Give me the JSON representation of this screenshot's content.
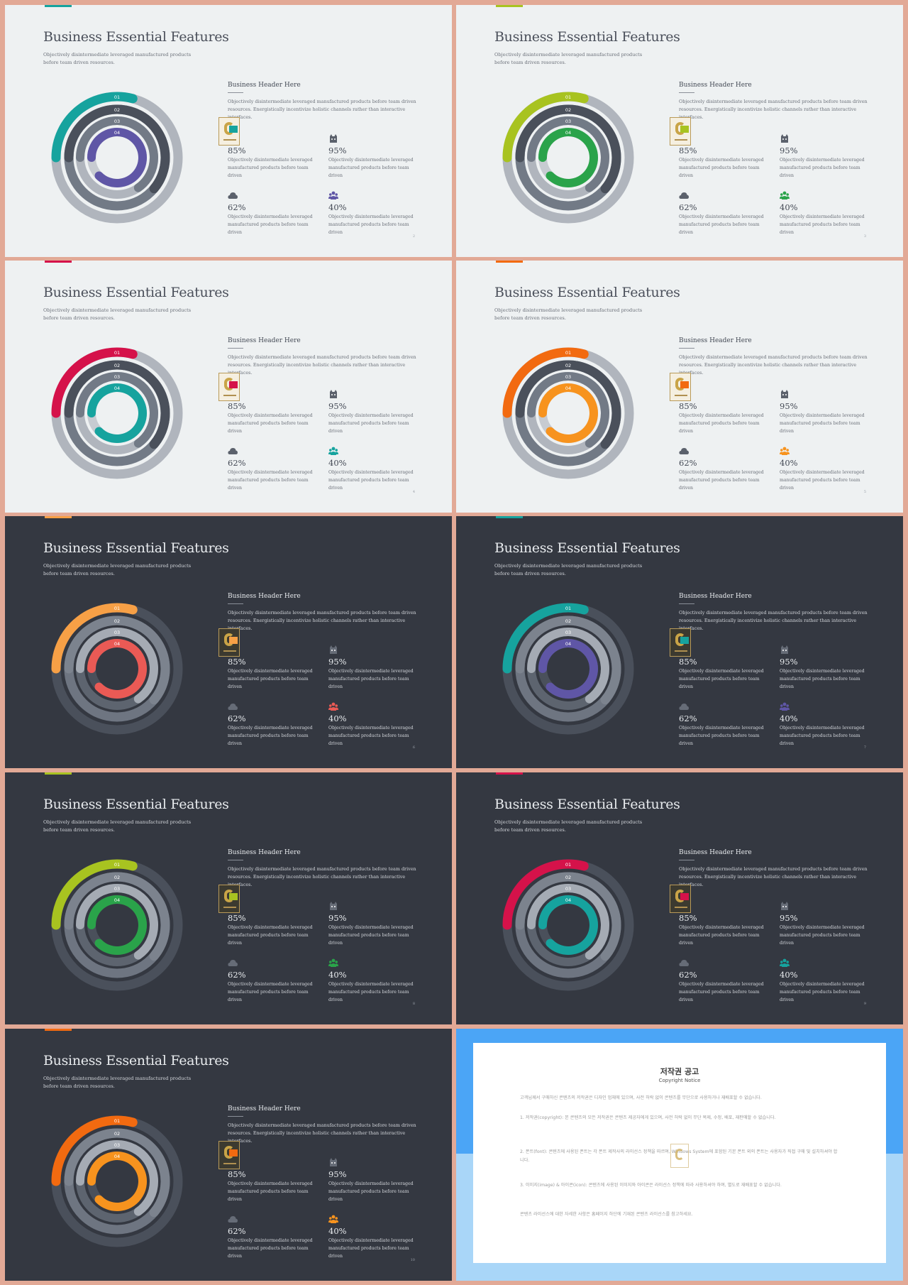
{
  "slides": [
    {
      "title": "Business Essential Features",
      "subtitle": "Objectively disintermediate leveraged manufactured products before team driven resources.",
      "header": "Business Header Here",
      "body": "Objectively disintermediate leveraged manufactured products before team driven resources. Energistically incentivize holistic channels rather than interactive interfaces.",
      "stats": [
        {
          "value": "85%",
          "icon": "badge-icon",
          "desc": "Objectively disintermediate leveraged manufactured products before team driven"
        },
        {
          "value": "95%",
          "icon": "cat-icon",
          "desc": "Objectively disintermediate leveraged manufactured products before team driven"
        },
        {
          "value": "62%",
          "icon": "cloud-icon",
          "desc": "Objectively disintermediate leveraged manufactured products before team driven"
        },
        {
          "value": "40%",
          "icon": "users-icon",
          "desc": "Objectively disintermediate leveraged manufactured products before team driven"
        }
      ],
      "ring_labels": [
        "01",
        "02",
        "03",
        "04"
      ],
      "page": "2",
      "theme": "light",
      "accent_outer": "#16a39e",
      "accent_inner": "#5f56a6"
    },
    {
      "title": "Business Essential Features",
      "subtitle": "Objectively disintermediate leveraged manufactured products before team driven resources.",
      "header": "Business Header Here",
      "body": "Objectively disintermediate leveraged manufactured products before team driven resources. Energistically incentivize holistic channels rather than interactive interfaces.",
      "stats": [
        {
          "value": "85%",
          "icon": "badge-icon",
          "desc": "Objectively disintermediate leveraged manufactured products before team driven"
        },
        {
          "value": "95%",
          "icon": "cat-icon",
          "desc": "Objectively disintermediate leveraged manufactured products before team driven"
        },
        {
          "value": "62%",
          "icon": "cloud-icon",
          "desc": "Objectively disintermediate leveraged manufactured products before team driven"
        },
        {
          "value": "40%",
          "icon": "users-icon",
          "desc": "Objectively disintermediate leveraged manufactured products before team driven"
        }
      ],
      "ring_labels": [
        "01",
        "02",
        "03",
        "04"
      ],
      "page": "3",
      "theme": "light",
      "accent_outer": "#a8c320",
      "accent_inner": "#2aa34a"
    },
    {
      "title": "Business Essential Features",
      "subtitle": "Objectively disintermediate leveraged manufactured products before team driven resources.",
      "header": "Business Header Here",
      "body": "Objectively disintermediate leveraged manufactured products before team driven resources. Energistically incentivize holistic channels rather than interactive interfaces.",
      "stats": [
        {
          "value": "85%",
          "icon": "badge-icon",
          "desc": "Objectively disintermediate leveraged manufactured products before team driven"
        },
        {
          "value": "95%",
          "icon": "cat-icon",
          "desc": "Objectively disintermediate leveraged manufactured products before team driven"
        },
        {
          "value": "62%",
          "icon": "cloud-icon",
          "desc": "Objectively disintermediate leveraged manufactured products before team driven"
        },
        {
          "value": "40%",
          "icon": "users-icon",
          "desc": "Objectively disintermediate leveraged manufactured products before team driven"
        }
      ],
      "ring_labels": [
        "01",
        "02",
        "03",
        "04"
      ],
      "page": "4",
      "theme": "light",
      "accent_outer": "#d5124a",
      "accent_inner": "#16a39e"
    },
    {
      "title": "Business Essential Features",
      "subtitle": "Objectively disintermediate leveraged manufactured products before team driven resources.",
      "header": "Business Header Here",
      "body": "Objectively disintermediate leveraged manufactured products before team driven resources. Energistically incentivize holistic channels rather than interactive interfaces.",
      "stats": [
        {
          "value": "85%",
          "icon": "badge-icon",
          "desc": "Objectively disintermediate leveraged manufactured products before team driven"
        },
        {
          "value": "95%",
          "icon": "cat-icon",
          "desc": "Objectively disintermediate leveraged manufactured products before team driven"
        },
        {
          "value": "62%",
          "icon": "cloud-icon",
          "desc": "Objectively disintermediate leveraged manufactured products before team driven"
        },
        {
          "value": "40%",
          "icon": "users-icon",
          "desc": "Objectively disintermediate leveraged manufactured products before team driven"
        }
      ],
      "ring_labels": [
        "01",
        "02",
        "03",
        "04"
      ],
      "page": "5",
      "theme": "light",
      "accent_outer": "#f26a10",
      "accent_inner": "#f7931e"
    },
    {
      "title": "Business Essential Features",
      "subtitle": "Objectively disintermediate leveraged manufactured products before team driven resources.",
      "header": "Business Header Here",
      "body": "Objectively disintermediate leveraged manufactured products before team driven resources. Energistically incentivize holistic channels rather than interactive interfaces.",
      "stats": [
        {
          "value": "85%",
          "icon": "badge-icon",
          "desc": "Objectively disintermediate leveraged manufactured products before team driven"
        },
        {
          "value": "95%",
          "icon": "cat-icon",
          "desc": "Objectively disintermediate leveraged manufactured products before team driven"
        },
        {
          "value": "62%",
          "icon": "cloud-icon",
          "desc": "Objectively disintermediate leveraged manufactured products before team driven"
        },
        {
          "value": "40%",
          "icon": "users-icon",
          "desc": "Objectively disintermediate leveraged manufactured products before team driven"
        }
      ],
      "ring_labels": [
        "01",
        "02",
        "03",
        "04"
      ],
      "page": "6",
      "theme": "dark",
      "accent_outer": "#f7a046",
      "accent_inner": "#ea5a55"
    },
    {
      "title": "Business Essential Features",
      "subtitle": "Objectively disintermediate leveraged manufactured products before team driven resources.",
      "header": "Business Header Here",
      "body": "Objectively disintermediate leveraged manufactured products before team driven resources. Energistically incentivize holistic channels rather than interactive interfaces.",
      "stats": [
        {
          "value": "85%",
          "icon": "badge-icon",
          "desc": "Objectively disintermediate leveraged manufactured products before team driven"
        },
        {
          "value": "95%",
          "icon": "cat-icon",
          "desc": "Objectively disintermediate leveraged manufactured products before team driven"
        },
        {
          "value": "62%",
          "icon": "cloud-icon",
          "desc": "Objectively disintermediate leveraged manufactured products before team driven"
        },
        {
          "value": "40%",
          "icon": "users-icon",
          "desc": "Objectively disintermediate leveraged manufactured products before team driven"
        }
      ],
      "ring_labels": [
        "01",
        "02",
        "03",
        "04"
      ],
      "page": "7",
      "theme": "dark",
      "accent_outer": "#16a39e",
      "accent_inner": "#5f56a6"
    },
    {
      "title": "Business Essential Features",
      "subtitle": "Objectively disintermediate leveraged manufactured products before team driven resources.",
      "header": "Business Header Here",
      "body": "Objectively disintermediate leveraged manufactured products before team driven resources. Energistically incentivize holistic channels rather than interactive interfaces.",
      "stats": [
        {
          "value": "85%",
          "icon": "badge-icon",
          "desc": "Objectively disintermediate leveraged manufactured products before team driven"
        },
        {
          "value": "95%",
          "icon": "cat-icon",
          "desc": "Objectively disintermediate leveraged manufactured products before team driven"
        },
        {
          "value": "62%",
          "icon": "cloud-icon",
          "desc": "Objectively disintermediate leveraged manufactured products before team driven"
        },
        {
          "value": "40%",
          "icon": "users-icon",
          "desc": "Objectively disintermediate leveraged manufactured products before team driven"
        }
      ],
      "ring_labels": [
        "01",
        "02",
        "03",
        "04"
      ],
      "page": "8",
      "theme": "dark",
      "accent_outer": "#a8c320",
      "accent_inner": "#2aa34a"
    },
    {
      "title": "Business Essential Features",
      "subtitle": "Objectively disintermediate leveraged manufactured products before team driven resources.",
      "header": "Business Header Here",
      "body": "Objectively disintermediate leveraged manufactured products before team driven resources. Energistically incentivize holistic channels rather than interactive interfaces.",
      "stats": [
        {
          "value": "85%",
          "icon": "badge-icon",
          "desc": "Objectively disintermediate leveraged manufactured products before team driven"
        },
        {
          "value": "95%",
          "icon": "cat-icon",
          "desc": "Objectively disintermediate leveraged manufactured products before team driven"
        },
        {
          "value": "62%",
          "icon": "cloud-icon",
          "desc": "Objectively disintermediate leveraged manufactured products before team driven"
        },
        {
          "value": "40%",
          "icon": "users-icon",
          "desc": "Objectively disintermediate leveraged manufactured products before team driven"
        }
      ],
      "ring_labels": [
        "01",
        "02",
        "03",
        "04"
      ],
      "page": "9",
      "theme": "dark",
      "accent_outer": "#d5124a",
      "accent_inner": "#16a39e"
    },
    {
      "title": "Business Essential Features",
      "subtitle": "Objectively disintermediate leveraged manufactured products before team driven resources.",
      "header": "Business Header Here",
      "body": "Objectively disintermediate leveraged manufactured products before team driven resources. Energistically incentivize holistic channels rather than interactive interfaces.",
      "stats": [
        {
          "value": "85%",
          "icon": "badge-icon",
          "desc": "Objectively disintermediate leveraged manufactured products before team driven"
        },
        {
          "value": "95%",
          "icon": "cat-icon",
          "desc": "Objectively disintermediate leveraged manufactured products before team driven"
        },
        {
          "value": "62%",
          "icon": "cloud-icon",
          "desc": "Objectively disintermediate leveraged manufactured products before team driven"
        },
        {
          "value": "40%",
          "icon": "users-icon",
          "desc": "Objectively disintermediate leveraged manufactured products before team driven"
        }
      ],
      "ring_labels": [
        "01",
        "02",
        "03",
        "04"
      ],
      "page": "10",
      "theme": "dark",
      "accent_outer": "#f26a10",
      "accent_inner": "#f7931e"
    }
  ],
  "copyright": {
    "title": "저작권 공고",
    "subtitle": "Copyright Notice",
    "paragraphs": [
      "고객님께서 구매하신 콘텐츠의 저작권은 디자인 업체에 있으며, 사전 허락 없이 콘텐츠를 무단으로 사용하거나 재배포할 수 없습니다.",
      "1. 저작권(copyright): 본 콘텐츠의 모든 저작권은 콘텐츠 제공자에게 있으며, 사전 허락 없이 무단 복제, 수정, 배포, 재판매할 수 없습니다.",
      "2. 폰트(font): 콘텐츠에 사용된 폰트는 각 폰트 제작사의 라이선스 정책을 따르며, Windows System에 포함된 기본 폰트 외의 폰트는 사용자가 직접 구매 및 설치하셔야 합니다.",
      "3. 이미지(image) & 아이콘(icon): 콘텐츠에 사용된 이미지와 아이콘은 라이선스 정책에 따라 사용하셔야 하며, 별도로 재배포할 수 없습니다.",
      "콘텐츠 라이선스에 대한 자세한 사항은 홈페이지 하단에 기재된 콘텐츠 라이선스를 참고하세요."
    ],
    "colors": {
      "top": "#4ba5f6",
      "bottom": "#a9d6f8"
    }
  },
  "theme_colors": {
    "light": {
      "bg": "#eef1f2",
      "dark_ring": "#4a505b",
      "mid_ring": "#727a86",
      "light_ring": "#b0b5bd",
      "icon": "#5b616c"
    },
    "dark": {
      "bg": "#343841",
      "dark_ring": "#4d535e",
      "mid_ring": "#6e7581",
      "light_ring": "#a5abb4",
      "icon": "#666c77"
    }
  }
}
